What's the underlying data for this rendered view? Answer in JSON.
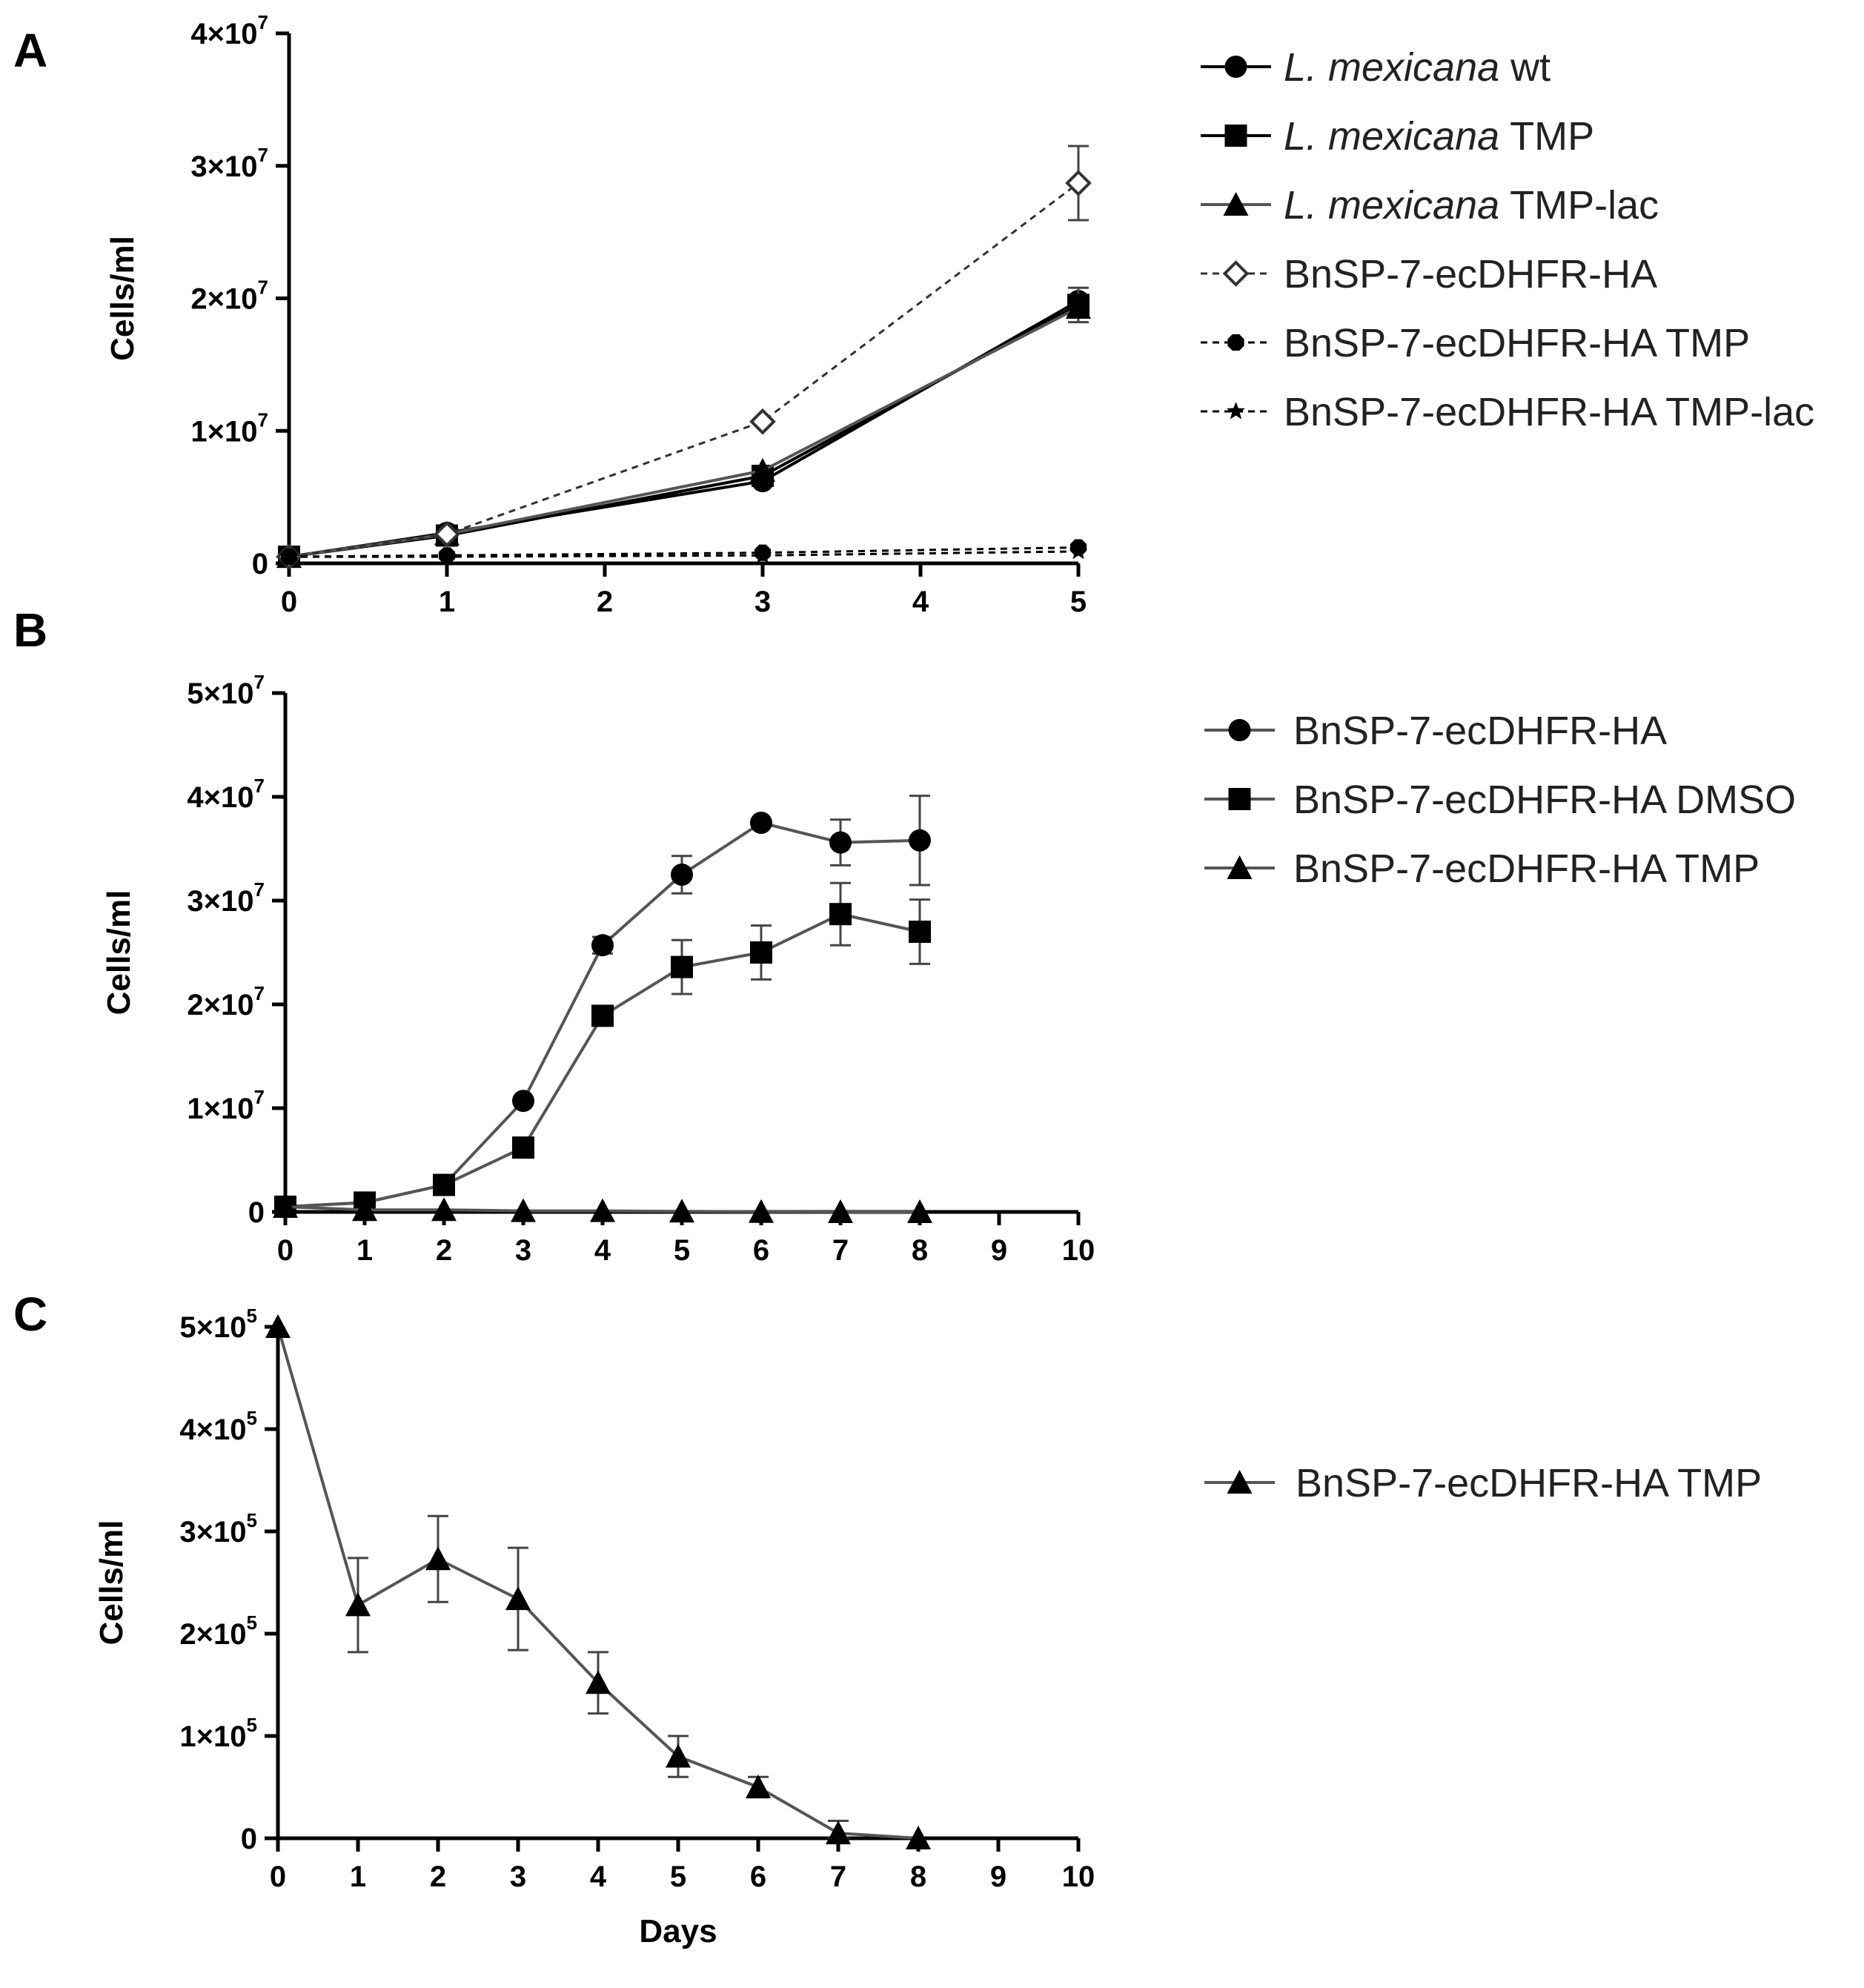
{
  "figure": {
    "background": "#ffffff",
    "x_axis_label": "Days"
  },
  "chart_data": [
    {
      "panel": "A",
      "type": "line",
      "ylabel": "Cells/ml",
      "xlabel": "",
      "xlim": [
        0,
        5
      ],
      "ylim": [
        0,
        40000000
      ],
      "xticks": [
        0,
        1,
        2,
        3,
        4,
        5
      ],
      "yticks": [
        0,
        10000000,
        20000000,
        30000000,
        40000000
      ],
      "ytick_labels": [
        "0",
        "1×10",
        "2×10",
        "3×10",
        "4×10"
      ],
      "ytick_exp": "7",
      "legend": "right",
      "series": [
        {
          "name": "L. mexicana wt",
          "name_italic": "L. mexicana",
          "name_rest": " wt",
          "marker": "circle",
          "dash": false,
          "color": "#000000",
          "x": [
            0,
            1,
            3,
            5
          ],
          "y": [
            500000,
            2300000,
            6200000,
            19800000
          ],
          "err": [
            0,
            0,
            0,
            0
          ]
        },
        {
          "name": "L. mexicana TMP",
          "name_italic": "L. mexicana",
          "name_rest": " TMP",
          "marker": "square",
          "dash": false,
          "color": "#000000",
          "x": [
            0,
            1,
            3,
            5
          ],
          "y": [
            500000,
            2100000,
            6600000,
            19500000
          ],
          "err": [
            0,
            0,
            0,
            1300000
          ]
        },
        {
          "name": "L. mexicana TMP-lac",
          "name_italic": "L. mexicana",
          "name_rest": " TMP-lac",
          "marker": "triangle",
          "dash": false,
          "color": "#555555",
          "x": [
            0,
            1,
            3,
            5
          ],
          "y": [
            500000,
            2200000,
            7000000,
            19300000
          ],
          "err": [
            0,
            0,
            0,
            0
          ]
        },
        {
          "name": "BnSP-7-ecDHFR-HA",
          "name_italic": "",
          "name_rest": "BnSP-7-ecDHFR-HA",
          "marker": "diamond-open",
          "dash": true,
          "color": "#333333",
          "x": [
            0,
            1,
            3,
            5
          ],
          "y": [
            500000,
            2200000,
            10700000,
            28700000
          ],
          "err": [
            0,
            0,
            0,
            2800000
          ]
        },
        {
          "name": "BnSP-7-ecDHFR-HA TMP",
          "name_italic": "",
          "name_rest": "BnSP-7-ecDHFR-HA TMP",
          "marker": "hexagon",
          "dash": true,
          "color": "#000000",
          "x": [
            0,
            1,
            3,
            5
          ],
          "y": [
            500000,
            600000,
            800000,
            1200000
          ],
          "err": [
            0,
            0,
            0,
            0
          ]
        },
        {
          "name": "BnSP-7-ecDHFR-HA TMP-lac",
          "name_italic": "",
          "name_rest": "BnSP-7-ecDHFR-HA TMP-lac",
          "marker": "star",
          "dash": true,
          "color": "#000000",
          "x": [
            0,
            1,
            3,
            5
          ],
          "y": [
            500000,
            500000,
            600000,
            900000
          ],
          "err": [
            0,
            0,
            0,
            0
          ]
        }
      ]
    },
    {
      "panel": "B",
      "type": "line",
      "ylabel": "Cells/ml",
      "xlabel": "",
      "xlim": [
        0,
        10
      ],
      "ylim": [
        0,
        50000000
      ],
      "xticks": [
        0,
        1,
        2,
        3,
        4,
        5,
        6,
        7,
        8,
        9,
        10
      ],
      "yticks": [
        0,
        10000000,
        20000000,
        30000000,
        40000000,
        50000000
      ],
      "ytick_labels": [
        "0",
        "1×10",
        "2×10",
        "3×10",
        "4×10",
        "5×10"
      ],
      "ytick_exp": "7",
      "legend": "right",
      "series": [
        {
          "name": "BnSP-7-ecDHFR-HA",
          "name_italic": "",
          "name_rest": "BnSP-7-ecDHFR-HA",
          "marker": "circle",
          "dash": false,
          "color": "#555555",
          "x": [
            0,
            1,
            2,
            3,
            4,
            5,
            6,
            7,
            8
          ],
          "y": [
            500000,
            900000,
            2600000,
            10700000,
            25700000,
            32500000,
            37500000,
            35600000,
            35800000
          ],
          "err": [
            0,
            0,
            0,
            0,
            800000,
            1800000,
            0,
            2200000,
            4300000
          ]
        },
        {
          "name": "BnSP-7-ecDHFR-HA DMSO",
          "name_italic": "",
          "name_rest": "BnSP-7-ecDHFR-HA DMSO",
          "marker": "square",
          "dash": false,
          "color": "#555555",
          "x": [
            0,
            1,
            2,
            3,
            4,
            5,
            6,
            7,
            8
          ],
          "y": [
            500000,
            900000,
            2600000,
            6200000,
            18900000,
            23600000,
            25000000,
            28700000,
            27000000
          ],
          "err": [
            0,
            0,
            0,
            0,
            0,
            2600000,
            2600000,
            3000000,
            3100000
          ]
        },
        {
          "name": "BnSP-7-ecDHFR-HA TMP",
          "name_italic": "",
          "name_rest": "BnSP-7-ecDHFR-HA TMP",
          "marker": "triangle",
          "dash": false,
          "color": "#555555",
          "x": [
            0,
            1,
            2,
            3,
            4,
            5,
            6,
            7,
            8
          ],
          "y": [
            500000,
            200000,
            200000,
            100000,
            100000,
            50000,
            20000,
            0,
            0
          ],
          "err": [
            0,
            0,
            0,
            0,
            0,
            0,
            0,
            0,
            0
          ]
        }
      ]
    },
    {
      "panel": "C",
      "type": "line",
      "ylabel": "Cells/ml",
      "xlabel": "Days",
      "xlim": [
        0,
        10
      ],
      "ylim": [
        0,
        500000
      ],
      "xticks": [
        0,
        1,
        2,
        3,
        4,
        5,
        6,
        7,
        8,
        9,
        10
      ],
      "yticks": [
        0,
        100000,
        200000,
        300000,
        400000,
        500000
      ],
      "ytick_labels": [
        "0",
        "1×10",
        "2×10",
        "3×10",
        "4×10",
        "5×10"
      ],
      "ytick_exp": "5",
      "legend": "right",
      "series": [
        {
          "name": "BnSP-7-ecDHFR-HA TMP",
          "name_italic": "",
          "name_rest": "BnSP-7-ecDHFR-HA TMP",
          "marker": "triangle",
          "dash": false,
          "color": "#555555",
          "x": [
            0,
            1,
            2,
            3,
            4,
            5,
            6,
            7,
            8
          ],
          "y": [
            500000,
            228000,
            273000,
            234000,
            152000,
            80000,
            50000,
            5000,
            0
          ],
          "err": [
            0,
            46000,
            42000,
            50000,
            30000,
            20000,
            10000,
            12000,
            0
          ]
        }
      ]
    }
  ]
}
